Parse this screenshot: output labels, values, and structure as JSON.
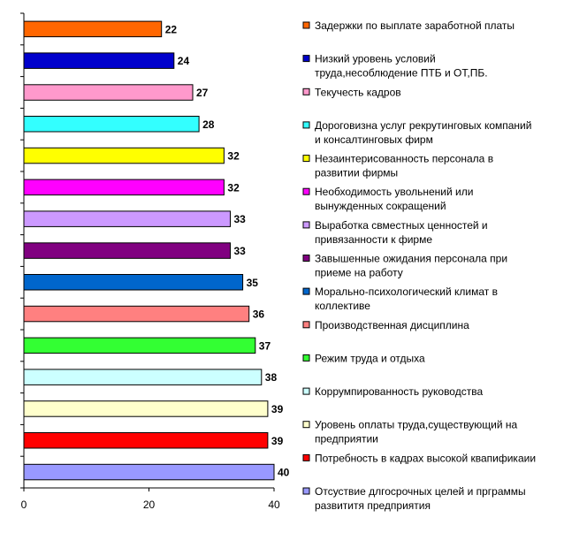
{
  "chart_data": {
    "type": "bar",
    "orientation": "horizontal",
    "categories": [
      "Задержки по выплате заработной платы",
      "Низкий уровень условий труда,несоблюдение ПТБ и ОТ,ПБ.",
      "Текучесть кадров",
      "Дороговизна услуг рекрутинговых компаний и консалтинговых фирм",
      "Незаинтерисованность персонала в развитии фирмы",
      "Необходимость увольнений или вынужденных сокращений",
      "Выработка свместных ценностей и привязанности к фирме",
      "Завышенные ожидания персонала при приеме на работу",
      "Морально-психологический климат в коллективе",
      "Производственная дисциплина",
      "Режим труда и отдыха",
      "Коррумпированность руководства",
      "Уровень оплаты труда,существующий на предприятии",
      "Потребность в кадрах высокой квапификаии",
      "Отсуствие длгосрочных целей и прграммы развититя предприятия"
    ],
    "legend_lines": [
      [
        "Задержки по выплате заработной платы"
      ],
      [
        "Низкий уровень условий",
        "труда,несоблюдение ПТБ и ОТ,ПБ."
      ],
      [
        "Текучесть кадров"
      ],
      [
        "Дороговизна услуг рекрутинговых компаний",
        "и консалтинговых фирм"
      ],
      [
        "Незаинтерисованность персонала в",
        "развитии фирмы"
      ],
      [
        "Необходимость увольнений или",
        "вынужденных сокращений"
      ],
      [
        "Выработка свместных ценностей и",
        "привязанности к фирме"
      ],
      [
        "Завышенные ожидания персонала при",
        "приеме на работу"
      ],
      [
        "Морально-психологический климат в",
        "коллективе"
      ],
      [
        "Производственная дисциплина"
      ],
      [
        "Режим труда и отдыха"
      ],
      [
        "Коррумпированность руководства"
      ],
      [
        "Уровень оплаты труда,существующий на",
        "предприятии"
      ],
      [
        "Потребность в кадрах высокой квапификаии"
      ],
      [
        "Отсуствие длгосрочных целей и прграммы",
        "развититя предприятия"
      ]
    ],
    "values": [
      22,
      24,
      27,
      28,
      32,
      32,
      33,
      33,
      35,
      36,
      37,
      38,
      39,
      39,
      40
    ],
    "colors": [
      "#FF6600",
      "#0000CC",
      "#FF99CC",
      "#33FFFF",
      "#FFFF00",
      "#FF00FF",
      "#CC99FF",
      "#800080",
      "#0066CC",
      "#FF8080",
      "#33FF33",
      "#CCFFFF",
      "#FFFFCC",
      "#FF0000",
      "#9999FF"
    ],
    "x_ticks": [
      0,
      20,
      40
    ],
    "xlim": [
      0,
      40
    ],
    "title": "",
    "xlabel": "",
    "ylabel": "",
    "grid": false,
    "legend": "right",
    "data_labels": true
  }
}
